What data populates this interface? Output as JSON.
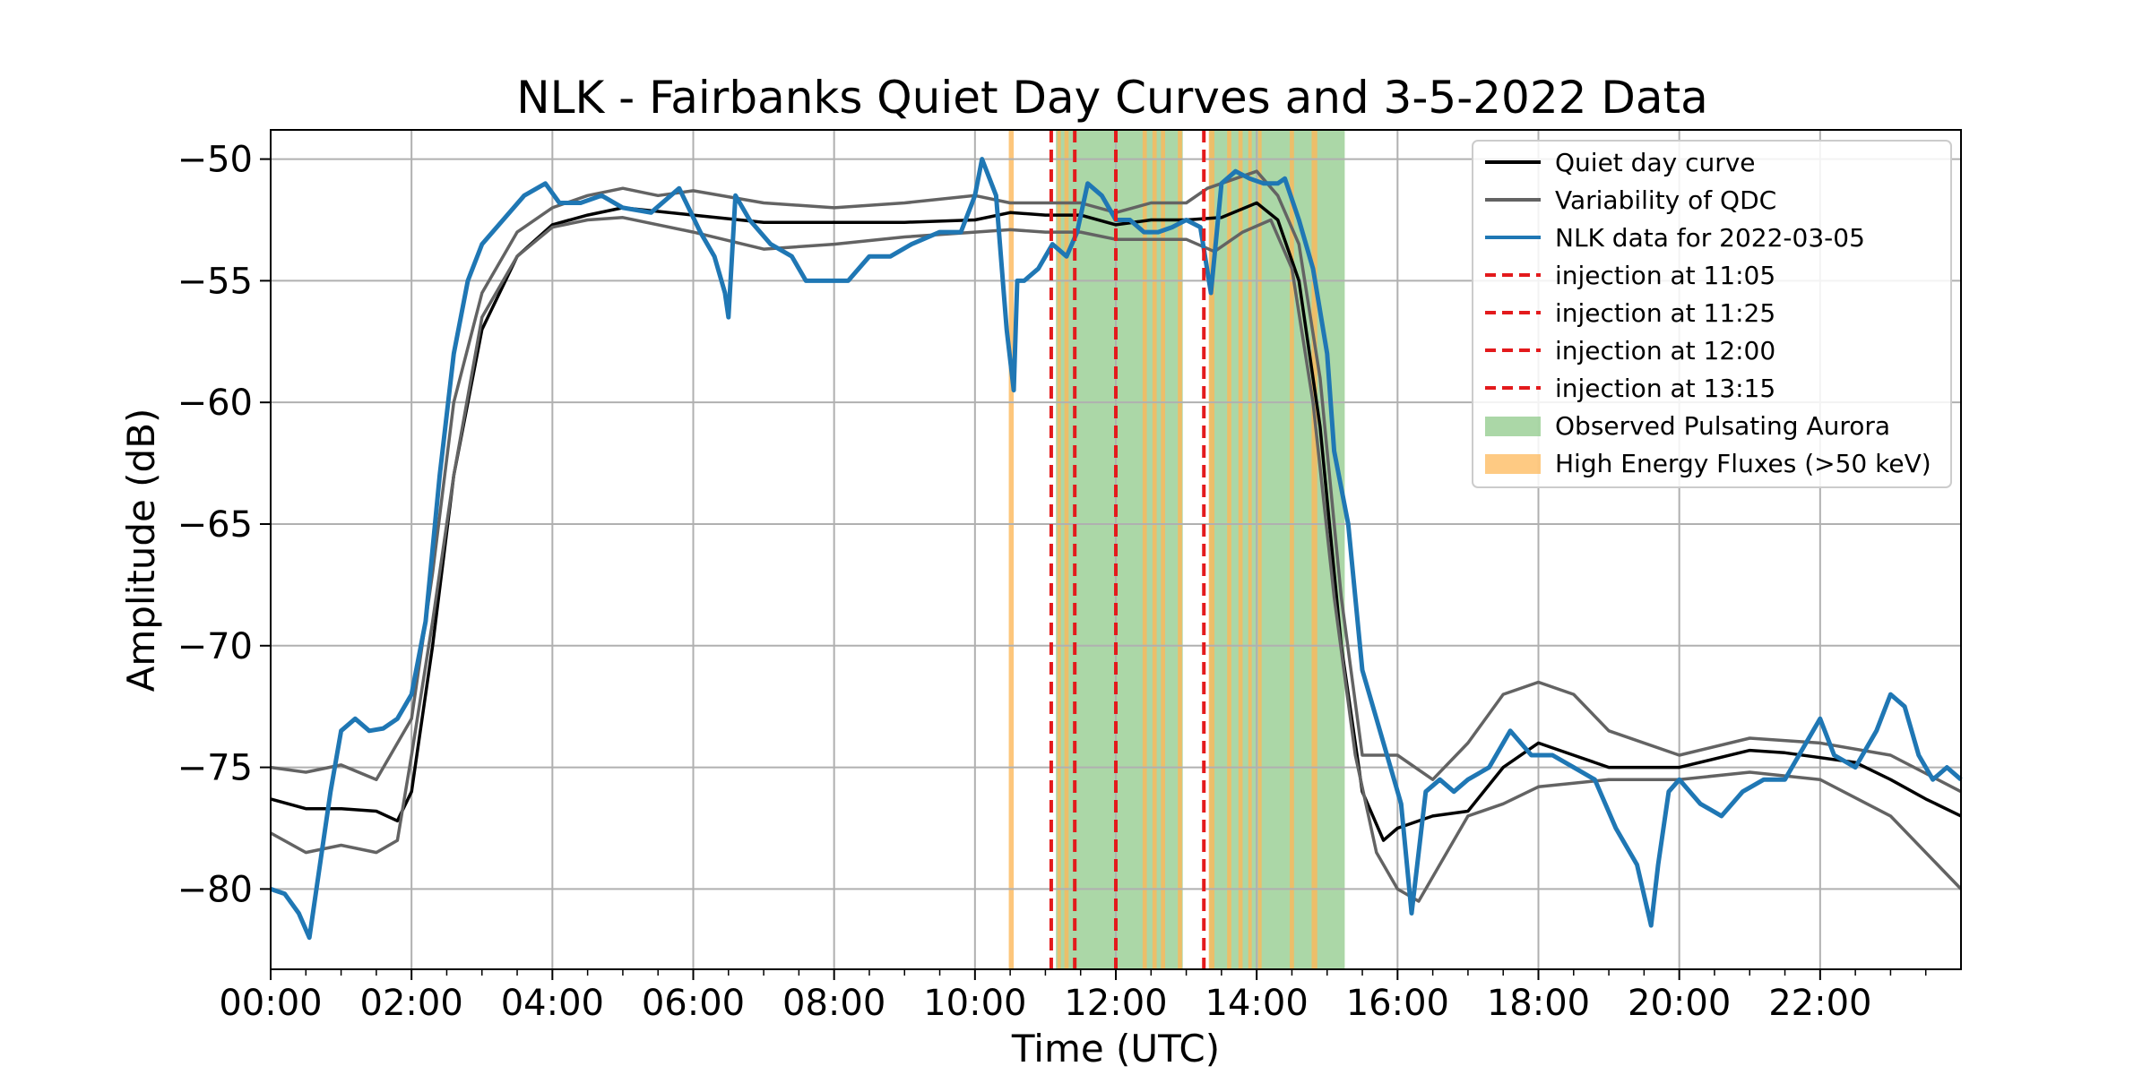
{
  "chart_data": {
    "type": "line",
    "title": "NLK - Fairbanks Quiet Day Curves and 3-5-2022 Data",
    "xlabel": "Time (UTC)",
    "ylabel": "Amplitude (dB)",
    "xlim_hours": [
      0,
      24
    ],
    "ylim": [
      -83.3,
      -48.8
    ],
    "x_ticks": [
      {
        "label": "00:00",
        "hour": 0
      },
      {
        "label": "02:00",
        "hour": 2
      },
      {
        "label": "04:00",
        "hour": 4
      },
      {
        "label": "06:00",
        "hour": 6
      },
      {
        "label": "08:00",
        "hour": 8
      },
      {
        "label": "10:00",
        "hour": 10
      },
      {
        "label": "12:00",
        "hour": 12
      },
      {
        "label": "14:00",
        "hour": 14
      },
      {
        "label": "16:00",
        "hour": 16
      },
      {
        "label": "18:00",
        "hour": 18
      },
      {
        "label": "20:00",
        "hour": 20
      },
      {
        "label": "22:00",
        "hour": 22
      }
    ],
    "y_ticks": [
      {
        "label": "−50",
        "value": -50
      },
      {
        "label": "−55",
        "value": -55
      },
      {
        "label": "−60",
        "value": -60
      },
      {
        "label": "−65",
        "value": -65
      },
      {
        "label": "−70",
        "value": -70
      },
      {
        "label": "−75",
        "value": -75
      },
      {
        "label": "−80",
        "value": -80
      }
    ],
    "grid": true,
    "legend_position": "top-right",
    "colors": {
      "quiet": "#000000",
      "variability": "#636363",
      "nlk": "#1f77b4",
      "injection": "#e31a1c",
      "aurora": "#8fc98a",
      "flux": "#fdb85a"
    },
    "series": [
      {
        "name": "Quiet day curve",
        "x": [
          0,
          0.5,
          1,
          1.5,
          1.8,
          2,
          2.3,
          2.6,
          3,
          3.5,
          4,
          4.5,
          5,
          6,
          7,
          8,
          9,
          10,
          10.5,
          11,
          11.5,
          12,
          12.5,
          13,
          13.5,
          14,
          14.3,
          14.6,
          14.9,
          15.2,
          15.5,
          15.8,
          16,
          16.5,
          17,
          17.5,
          18,
          18.5,
          19,
          20,
          21,
          21.5,
          22,
          22.5,
          23,
          23.5,
          24
        ],
        "y": [
          -76.3,
          -76.7,
          -76.7,
          -76.8,
          -77.2,
          -76,
          -70,
          -63,
          -57,
          -54,
          -52.7,
          -52.3,
          -52,
          -52.3,
          -52.6,
          -52.6,
          -52.6,
          -52.5,
          -52.2,
          -52.3,
          -52.3,
          -52.7,
          -52.5,
          -52.5,
          -52.4,
          -51.8,
          -52.5,
          -55,
          -61,
          -70,
          -76,
          -78,
          -77.5,
          -77,
          -76.8,
          -75,
          -74,
          -74.5,
          -75,
          -75,
          -74.3,
          -74.4,
          -74.6,
          -74.8,
          -75.5,
          -76.3,
          -77
        ]
      },
      {
        "name": "Variability of QDC",
        "x": [
          0,
          0.5,
          1,
          1.5,
          2,
          2.3,
          2.6,
          3,
          3.5,
          4,
          4.5,
          5,
          5.5,
          6,
          7,
          8,
          9,
          10,
          10.5,
          11,
          11.5,
          12,
          12.5,
          13,
          13.3,
          13.7,
          14,
          14.3,
          14.6,
          14.9,
          15.2,
          15.5,
          16,
          16.5,
          17,
          17.5,
          18,
          18.5,
          19,
          20,
          21,
          22,
          23,
          24
        ],
        "y": [
          -75,
          -75.2,
          -74.9,
          -75.5,
          -73,
          -67,
          -60,
          -55.5,
          -53,
          -52,
          -51.5,
          -51.2,
          -51.5,
          -51.3,
          -51.8,
          -52,
          -51.8,
          -51.5,
          -51.8,
          -51.8,
          -51.8,
          -52.2,
          -51.8,
          -51.8,
          -51.2,
          -50.8,
          -50.5,
          -51.5,
          -53.5,
          -59,
          -68,
          -74.5,
          -74.5,
          -75.5,
          -74,
          -72,
          -71.5,
          -72,
          -73.5,
          -74.5,
          -73.8,
          -74,
          -74.5,
          -76
        ]
      },
      {
        "name": "",
        "x": [
          0,
          0.5,
          1,
          1.5,
          1.8,
          2,
          2.3,
          2.6,
          3,
          3.5,
          4,
          4.5,
          5,
          6,
          7,
          8,
          9,
          10,
          10.5,
          11,
          11.5,
          12,
          12.5,
          13,
          13.4,
          13.8,
          14.2,
          14.5,
          14.8,
          15.1,
          15.4,
          15.7,
          16,
          16.3,
          16.7,
          17,
          17.5,
          18,
          19,
          20,
          21,
          22,
          23,
          24
        ],
        "y": [
          -77.7,
          -78.5,
          -78.2,
          -78.5,
          -78,
          -74.5,
          -69,
          -63,
          -56.5,
          -54,
          -52.8,
          -52.5,
          -52.4,
          -53,
          -53.7,
          -53.5,
          -53.2,
          -53,
          -52.9,
          -53,
          -53,
          -53.3,
          -53.3,
          -53.3,
          -53.8,
          -53,
          -52.5,
          -54.5,
          -60,
          -68,
          -74.5,
          -78.5,
          -80,
          -80.5,
          -78.5,
          -77,
          -76.5,
          -75.8,
          -75.5,
          -75.5,
          -75.2,
          -75.5,
          -77,
          -80
        ]
      },
      {
        "name": "NLK data for 2022-03-05",
        "x": [
          0,
          0.2,
          0.4,
          0.55,
          0.7,
          0.85,
          1,
          1.2,
          1.4,
          1.6,
          1.8,
          2,
          2.2,
          2.4,
          2.6,
          2.8,
          3,
          3.3,
          3.6,
          3.9,
          4.1,
          4.4,
          4.7,
          5,
          5.4,
          5.8,
          6.1,
          6.3,
          6.45,
          6.5,
          6.6,
          6.8,
          7.1,
          7.4,
          7.6,
          7.8,
          8,
          8.2,
          8.5,
          8.8,
          9.1,
          9.5,
          9.8,
          10,
          10.1,
          10.3,
          10.45,
          10.55,
          10.6,
          10.7,
          10.9,
          11.1,
          11.3,
          11.45,
          11.6,
          11.8,
          12,
          12.2,
          12.4,
          12.6,
          12.8,
          13,
          13.2,
          13.35,
          13.5,
          13.7,
          13.9,
          14.1,
          14.3,
          14.4,
          14.6,
          14.8,
          15,
          15.1,
          15.3,
          15.5,
          15.7,
          15.9,
          16.05,
          16.2,
          16.4,
          16.6,
          16.8,
          17,
          17.3,
          17.6,
          17.9,
          18.2,
          18.5,
          18.8,
          19.1,
          19.4,
          19.6,
          19.7,
          19.85,
          20,
          20.3,
          20.6,
          20.9,
          21.2,
          21.5,
          21.8,
          22,
          22.2,
          22.5,
          22.8,
          23,
          23.2,
          23.4,
          23.6,
          23.8,
          24
        ],
        "y": [
          -80,
          -80.2,
          -81,
          -82,
          -79,
          -76,
          -73.5,
          -73,
          -73.5,
          -73.4,
          -73,
          -72,
          -69,
          -63,
          -58,
          -55,
          -53.5,
          -52.5,
          -51.5,
          -51,
          -51.8,
          -51.8,
          -51.5,
          -52,
          -52.2,
          -51.2,
          -53,
          -54,
          -55.5,
          -56.5,
          -51.5,
          -52.5,
          -53.5,
          -54,
          -55,
          -55,
          -55,
          -55,
          -54,
          -54,
          -53.5,
          -53,
          -53,
          -51.5,
          -50,
          -51.5,
          -57,
          -59.5,
          -55,
          -55,
          -54.5,
          -53.5,
          -54,
          -53,
          -51,
          -51.5,
          -52.5,
          -52.5,
          -53,
          -53,
          -52.8,
          -52.5,
          -52.8,
          -55.5,
          -51,
          -50.5,
          -50.8,
          -51,
          -51,
          -50.8,
          -52.5,
          -54.5,
          -58,
          -62,
          -65,
          -71,
          -73,
          -75,
          -76.5,
          -81,
          -76,
          -75.5,
          -76,
          -75.5,
          -75,
          -73.5,
          -74.5,
          -74.5,
          -75,
          -75.5,
          -77.5,
          -79,
          -81.5,
          -79,
          -76,
          -75.5,
          -76.5,
          -77,
          -76,
          -75.5,
          -75.5,
          -74,
          -73,
          -74.5,
          -75,
          -73.5,
          -72,
          -72.5,
          -74.5,
          -75.5,
          -75,
          -75.5
        ]
      }
    ],
    "injections": [
      {
        "label": "injection at 11:05",
        "hour": 11.083
      },
      {
        "label": "injection at 11:25",
        "hour": 11.417
      },
      {
        "label": "injection at 12:00",
        "hour": 12.0
      },
      {
        "label": "injection at 13:15",
        "hour": 13.25
      }
    ],
    "aurora_spans": [
      {
        "start": 11.15,
        "end": 12.95
      },
      {
        "start": 13.33,
        "end": 15.25
      }
    ],
    "flux_spans": [
      {
        "start": 10.48,
        "end": 10.55
      },
      {
        "start": 11.17,
        "end": 11.22
      },
      {
        "start": 11.27,
        "end": 11.33
      },
      {
        "start": 12.38,
        "end": 12.44
      },
      {
        "start": 12.52,
        "end": 12.58
      },
      {
        "start": 12.64,
        "end": 12.7
      },
      {
        "start": 12.88,
        "end": 12.94
      },
      {
        "start": 13.32,
        "end": 13.4
      },
      {
        "start": 13.58,
        "end": 13.64
      },
      {
        "start": 13.74,
        "end": 13.8
      },
      {
        "start": 13.88,
        "end": 13.93
      },
      {
        "start": 14.02,
        "end": 14.07
      },
      {
        "start": 14.47,
        "end": 14.53
      },
      {
        "start": 14.78,
        "end": 14.86
      }
    ],
    "legend": [
      {
        "label": "Quiet day curve",
        "kind": "line",
        "color_key": "quiet"
      },
      {
        "label": "Variability of QDC",
        "kind": "line",
        "color_key": "variability"
      },
      {
        "label": "NLK data for 2022-03-05",
        "kind": "line",
        "color_key": "nlk"
      },
      {
        "label": "injection at 11:05",
        "kind": "dashed",
        "color_key": "injection"
      },
      {
        "label": "injection at 11:25",
        "kind": "dashed",
        "color_key": "injection"
      },
      {
        "label": "injection at 12:00",
        "kind": "dashed",
        "color_key": "injection"
      },
      {
        "label": "injection at 13:15",
        "kind": "dashed",
        "color_key": "injection"
      },
      {
        "label": "Observed Pulsating Aurora",
        "kind": "patch",
        "color_key": "aurora"
      },
      {
        "label": "High Energy Fluxes (>50 keV)",
        "kind": "patch",
        "color_key": "flux"
      }
    ]
  }
}
